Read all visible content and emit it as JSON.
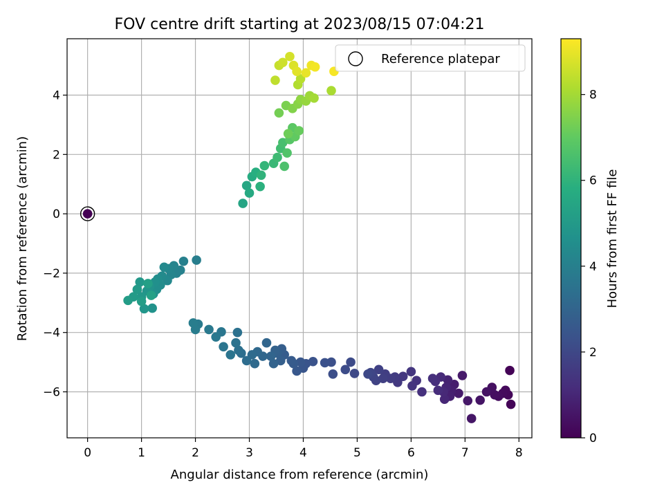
{
  "chart_data": {
    "type": "scatter",
    "title": "FOV centre drift starting at 2023/08/15 07:04:21",
    "xlabel": "Angular distance from reference (arcmin)",
    "ylabel": "Rotation from reference (arcmin)",
    "xlim": [
      -0.38,
      8.24
    ],
    "ylim": [
      -7.55,
      5.9
    ],
    "xticks": [
      0,
      1,
      2,
      3,
      4,
      5,
      6,
      7,
      8
    ],
    "yticks": [
      -6,
      -4,
      -2,
      0,
      2,
      4
    ],
    "grid": true,
    "legend": {
      "entries": [
        "Reference platepar"
      ],
      "placement": "upper right"
    },
    "colorbar": {
      "label": "Hours from first FF file",
      "range": [
        0,
        9.3
      ],
      "ticks": [
        0,
        2,
        4,
        6,
        8
      ],
      "colormap": "viridis"
    },
    "reference_point": {
      "x": 0,
      "y": 0
    },
    "points": [
      [
        7.83,
        -5.28,
        0.05
      ],
      [
        7.85,
        -6.42,
        0.1
      ],
      [
        7.8,
        -6.1,
        0.15
      ],
      [
        7.75,
        -5.95,
        0.2
      ],
      [
        7.7,
        -6.05,
        0.25
      ],
      [
        7.62,
        -6.15,
        0.3
      ],
      [
        7.55,
        -6.1,
        0.35
      ],
      [
        7.5,
        -5.85,
        0.4
      ],
      [
        7.4,
        -6.0,
        0.45
      ],
      [
        7.28,
        -6.28,
        0.5
      ],
      [
        7.12,
        -6.9,
        0.55
      ],
      [
        7.05,
        -6.3,
        0.6
      ],
      [
        6.95,
        -5.45,
        0.65
      ],
      [
        6.88,
        -6.05,
        0.7
      ],
      [
        6.8,
        -5.75,
        0.75
      ],
      [
        6.75,
        -5.95,
        0.8
      ],
      [
        6.72,
        -6.15,
        0.85
      ],
      [
        6.68,
        -5.6,
        0.9
      ],
      [
        6.65,
        -5.85,
        0.95
      ],
      [
        6.62,
        -6.25,
        1.0
      ],
      [
        6.6,
        -6.0,
        1.05
      ],
      [
        6.55,
        -5.5,
        1.1
      ],
      [
        6.5,
        -5.95,
        1.15
      ],
      [
        6.45,
        -5.65,
        1.2
      ],
      [
        6.4,
        -5.55,
        1.25
      ],
      [
        6.2,
        -6.0,
        1.3
      ],
      [
        6.1,
        -5.62,
        1.35
      ],
      [
        6.02,
        -5.8,
        1.4
      ],
      [
        6.0,
        -5.32,
        1.45
      ],
      [
        5.85,
        -5.48,
        1.5
      ],
      [
        5.75,
        -5.68,
        1.55
      ],
      [
        5.7,
        -5.5,
        1.6
      ],
      [
        5.62,
        -5.55,
        1.65
      ],
      [
        5.52,
        -5.4,
        1.7
      ],
      [
        5.48,
        -5.55,
        1.75
      ],
      [
        5.4,
        -5.25,
        1.8
      ],
      [
        5.35,
        -5.62,
        1.85
      ],
      [
        5.3,
        -5.5,
        1.9
      ],
      [
        5.25,
        -5.35,
        1.95
      ],
      [
        5.2,
        -5.4,
        2.0
      ],
      [
        4.95,
        -5.38,
        2.05
      ],
      [
        4.88,
        -5.0,
        2.1
      ],
      [
        4.78,
        -5.25,
        2.15
      ],
      [
        4.55,
        -5.4,
        2.2
      ],
      [
        4.52,
        -5.0,
        2.25
      ],
      [
        4.4,
        -5.02,
        2.3
      ],
      [
        4.18,
        -4.98,
        2.35
      ],
      [
        4.05,
        -5.05,
        2.4
      ],
      [
        4.0,
        -5.2,
        2.45
      ],
      [
        3.95,
        -5.0,
        2.5
      ],
      [
        3.88,
        -5.3,
        2.55
      ],
      [
        3.82,
        -5.05,
        2.6
      ],
      [
        3.78,
        -4.95,
        2.65
      ],
      [
        3.65,
        -4.75,
        2.7
      ],
      [
        3.6,
        -4.55,
        2.75
      ],
      [
        3.58,
        -4.95,
        2.8
      ],
      [
        3.52,
        -4.7,
        2.85
      ],
      [
        3.48,
        -4.6,
        2.9
      ],
      [
        3.45,
        -5.05,
        2.95
      ],
      [
        3.4,
        -4.8,
        3.0
      ],
      [
        3.32,
        -4.35,
        3.05
      ],
      [
        3.25,
        -4.8,
        3.1
      ],
      [
        3.15,
        -4.65,
        3.15
      ],
      [
        3.1,
        -5.05,
        3.2
      ],
      [
        3.05,
        -4.75,
        3.25
      ],
      [
        2.95,
        -4.95,
        3.3
      ],
      [
        2.85,
        -4.7,
        3.35
      ],
      [
        2.8,
        -4.6,
        3.4
      ],
      [
        2.78,
        -4.0,
        3.45
      ],
      [
        2.75,
        -4.35,
        3.5
      ],
      [
        2.65,
        -4.75,
        3.55
      ],
      [
        2.52,
        -4.48,
        3.6
      ],
      [
        2.48,
        -3.98,
        3.65
      ],
      [
        2.38,
        -4.15,
        3.7
      ],
      [
        2.25,
        -3.9,
        3.75
      ],
      [
        2.05,
        -3.72,
        3.8
      ],
      [
        2.0,
        -3.9,
        3.85
      ],
      [
        1.96,
        -3.68,
        3.9
      ],
      [
        2.02,
        -1.56,
        3.95
      ],
      [
        1.78,
        -1.6,
        4.0
      ],
      [
        1.72,
        -1.9,
        4.05
      ],
      [
        1.65,
        -2.0,
        4.1
      ],
      [
        1.6,
        -1.75,
        4.15
      ],
      [
        1.55,
        -2.05,
        4.2
      ],
      [
        1.5,
        -1.85,
        4.25
      ],
      [
        1.48,
        -2.25,
        4.3
      ],
      [
        1.42,
        -1.8,
        4.35
      ],
      [
        1.38,
        -2.1,
        4.4
      ],
      [
        1.35,
        -2.4,
        4.45
      ],
      [
        1.3,
        -2.2,
        4.5
      ],
      [
        1.28,
        -2.55,
        4.55
      ],
      [
        1.25,
        -2.3,
        4.6
      ],
      [
        1.22,
        -2.7,
        4.65
      ],
      [
        1.2,
        -3.18,
        4.7
      ],
      [
        1.15,
        -2.45,
        4.75
      ],
      [
        1.1,
        -2.6,
        4.8
      ],
      [
        1.05,
        -3.2,
        4.85
      ],
      [
        1.0,
        -2.8,
        4.9
      ],
      [
        0.97,
        -2.3,
        4.95
      ],
      [
        0.92,
        -2.55,
        5.0
      ],
      [
        0.85,
        -2.8,
        5.05
      ],
      [
        0.75,
        -2.92,
        5.1
      ],
      [
        1.0,
        -2.95,
        5.15
      ],
      [
        1.12,
        -2.35,
        5.2
      ],
      [
        1.18,
        -2.75,
        5.25
      ],
      [
        2.88,
        0.35,
        5.4
      ],
      [
        2.95,
        0.95,
        5.5
      ],
      [
        3.0,
        0.7,
        5.6
      ],
      [
        3.05,
        1.25,
        5.7
      ],
      [
        3.12,
        1.4,
        5.8
      ],
      [
        3.2,
        0.92,
        5.9
      ],
      [
        3.22,
        1.3,
        6.0
      ],
      [
        3.28,
        1.62,
        6.1
      ],
      [
        3.45,
        1.7,
        6.2
      ],
      [
        3.52,
        1.9,
        6.3
      ],
      [
        3.58,
        2.2,
        6.4
      ],
      [
        3.62,
        2.4,
        6.5
      ],
      [
        3.65,
        1.6,
        6.6
      ],
      [
        3.7,
        2.05,
        6.7
      ],
      [
        3.75,
        2.5,
        6.8
      ],
      [
        3.8,
        2.9,
        6.9
      ],
      [
        3.85,
        2.6,
        7.0
      ],
      [
        3.92,
        2.8,
        7.1
      ],
      [
        3.72,
        2.7,
        7.2
      ],
      [
        3.55,
        3.4,
        7.3
      ],
      [
        3.68,
        3.65,
        7.4
      ],
      [
        3.8,
        3.55,
        7.5
      ],
      [
        3.9,
        3.7,
        7.6
      ],
      [
        3.95,
        3.85,
        7.7
      ],
      [
        4.05,
        3.8,
        7.8
      ],
      [
        4.12,
        3.98,
        7.9
      ],
      [
        4.2,
        3.9,
        8.0
      ],
      [
        4.52,
        4.15,
        8.1
      ],
      [
        3.9,
        4.35,
        8.2
      ],
      [
        3.95,
        4.55,
        8.3
      ],
      [
        3.48,
        4.5,
        8.4
      ],
      [
        3.55,
        5.0,
        8.5
      ],
      [
        3.62,
        5.1,
        8.6
      ],
      [
        3.75,
        5.3,
        8.7
      ],
      [
        3.82,
        5.0,
        8.8
      ],
      [
        3.88,
        4.8,
        8.9
      ],
      [
        4.05,
        4.75,
        9.0
      ],
      [
        4.15,
        5.0,
        9.1
      ],
      [
        4.22,
        4.95,
        9.15
      ],
      [
        4.57,
        4.8,
        9.2
      ],
      [
        0.0,
        0.0,
        0.0
      ]
    ]
  }
}
